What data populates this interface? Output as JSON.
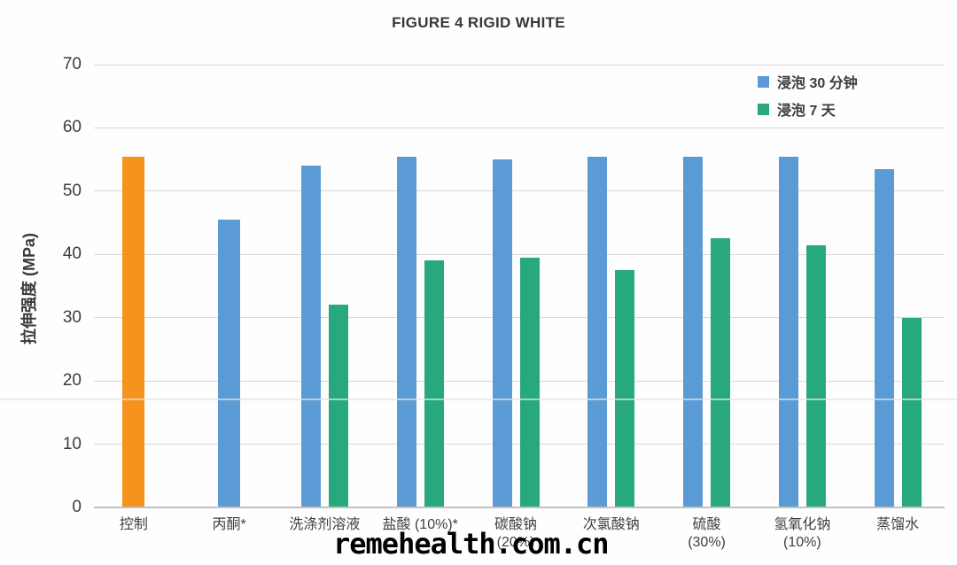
{
  "title": "FIGURE 4 RIGID WHITE",
  "watermark": "remehealth.com.cn",
  "colors": {
    "control_bar": "#F6931D",
    "soak_30min_bar": "#5B9BD5",
    "soak_7day_bar": "#27A97D",
    "gridline": "#D8D8D8",
    "axis_text": "#3C3C3C"
  },
  "legend": {
    "items": [
      {
        "label": "浸泡 30 分钟",
        "color": "#5B9BD5"
      },
      {
        "label": "浸泡 7 天",
        "color": "#27A97D"
      }
    ]
  },
  "chart_data": {
    "type": "bar",
    "title": "FIGURE 4 RIGID WHITE",
    "xlabel": "",
    "ylabel": "拉伸强度 (MPa)",
    "ylim": [
      0,
      70
    ],
    "ytick_step": 10,
    "yticks": [
      0,
      10,
      20,
      30,
      40,
      50,
      60,
      70
    ],
    "grid": true,
    "legend_position": "top-right",
    "categories": [
      {
        "label": "控制",
        "sublabel": ""
      },
      {
        "label": "丙酮*",
        "sublabel": ""
      },
      {
        "label": "洗涤剂溶液",
        "sublabel": ""
      },
      {
        "label": "盐酸 (10%)*",
        "sublabel": ""
      },
      {
        "label": "碳酸钠",
        "sublabel": "(20%)"
      },
      {
        "label": "次氯酸钠",
        "sublabel": ""
      },
      {
        "label": "硫酸",
        "sublabel": "(30%)"
      },
      {
        "label": "氢氧化钠",
        "sublabel": "(10%)"
      },
      {
        "label": "蒸馏水",
        "sublabel": ""
      }
    ],
    "series": [
      {
        "name": "浸泡 30 分钟",
        "color": "#5B9BD5",
        "values": [
          55.5,
          45.5,
          54,
          55.5,
          55,
          55.5,
          55.5,
          55.5,
          53.5
        ]
      },
      {
        "name": "浸泡 7 天",
        "color": "#27A97D",
        "values": [
          null,
          null,
          32,
          39,
          39.5,
          37.5,
          42.5,
          41.5,
          30
        ]
      }
    ],
    "control_category_index": 0,
    "control_bar_color": "#F6931D"
  }
}
